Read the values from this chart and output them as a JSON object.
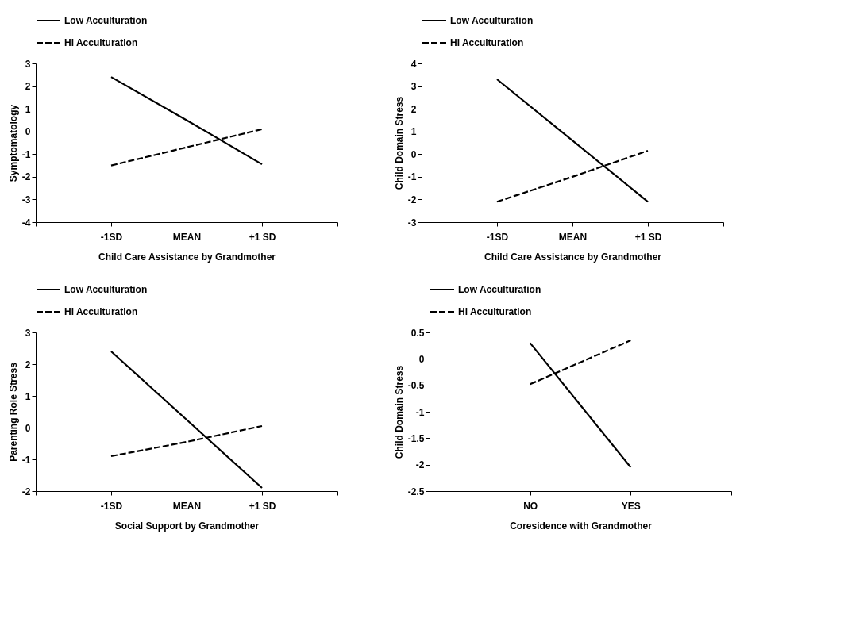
{
  "chart_data": [
    {
      "type": "line",
      "xlabel": "Child Care Assistance by Grandmother",
      "ylabel": "Symptomatology",
      "categories": [
        null,
        "-1SD",
        "MEAN",
        "+1 SD",
        null
      ],
      "ylim": [
        -4,
        3
      ],
      "yticks": [
        -4,
        -3,
        -2,
        -1,
        0,
        1,
        2,
        3
      ],
      "grid": false,
      "legend": "top",
      "marker": "none",
      "series": [
        {
          "name": "Low Acculturation",
          "color": "#000000",
          "line_style": "solid",
          "values": [
            null,
            2.4,
            0.5,
            -1.45,
            null
          ]
        },
        {
          "name": "Hi Acculturation",
          "color": "#000000",
          "line_style": "dashed",
          "values": [
            null,
            -1.5,
            -0.7,
            0.1,
            null
          ]
        }
      ]
    },
    {
      "type": "line",
      "xlabel": "Child Care Assistance by Grandmother",
      "ylabel": "Child Domain Stress",
      "categories": [
        null,
        "-1SD",
        "MEAN",
        "+1 SD",
        null
      ],
      "ylim": [
        -3,
        4
      ],
      "yticks": [
        -3,
        -2,
        -1,
        0,
        1,
        2,
        3,
        4
      ],
      "grid": false,
      "legend": "top",
      "marker": "none",
      "series": [
        {
          "name": "Low Acculturation",
          "color": "#000000",
          "line_style": "solid",
          "values": [
            null,
            3.3,
            0.6,
            -2.1,
            null
          ]
        },
        {
          "name": "Hi Acculturation",
          "color": "#000000",
          "line_style": "dashed",
          "values": [
            null,
            -2.1,
            -1.0,
            0.15,
            null
          ]
        }
      ]
    },
    {
      "type": "line",
      "xlabel": "Social Support by Grandmother",
      "ylabel": "Parenting Role Stress",
      "categories": [
        null,
        "-1SD",
        "MEAN",
        "+1 SD",
        null
      ],
      "ylim": [
        -2,
        3
      ],
      "yticks": [
        -2,
        -1,
        0,
        1,
        2,
        3
      ],
      "grid": false,
      "legend": "top",
      "marker": "none",
      "series": [
        {
          "name": "Low Acculturation",
          "color": "#000000",
          "line_style": "solid",
          "values": [
            null,
            2.4,
            0.25,
            -1.9,
            null
          ]
        },
        {
          "name": "Hi Acculturation",
          "color": "#000000",
          "line_style": "dashed",
          "values": [
            null,
            -0.9,
            -0.45,
            0.05,
            null
          ]
        }
      ]
    },
    {
      "type": "line",
      "xlabel": "Coresidence with Grandmother",
      "ylabel": "Child Domain Stress",
      "categories": [
        null,
        "NO",
        "YES",
        null
      ],
      "ylim": [
        -2.5,
        0.5
      ],
      "yticks": [
        -2.5,
        -2,
        -1.5,
        -1,
        -0.5,
        0,
        0.5
      ],
      "grid": false,
      "legend": "top",
      "marker": "none",
      "series": [
        {
          "name": "Low Acculturation",
          "color": "#000000",
          "line_style": "solid",
          "values": [
            null,
            0.3,
            -2.05,
            null
          ]
        },
        {
          "name": "Hi Acculturation",
          "color": "#000000",
          "line_style": "dashed",
          "values": [
            null,
            -0.48,
            0.35,
            null
          ]
        }
      ]
    }
  ]
}
